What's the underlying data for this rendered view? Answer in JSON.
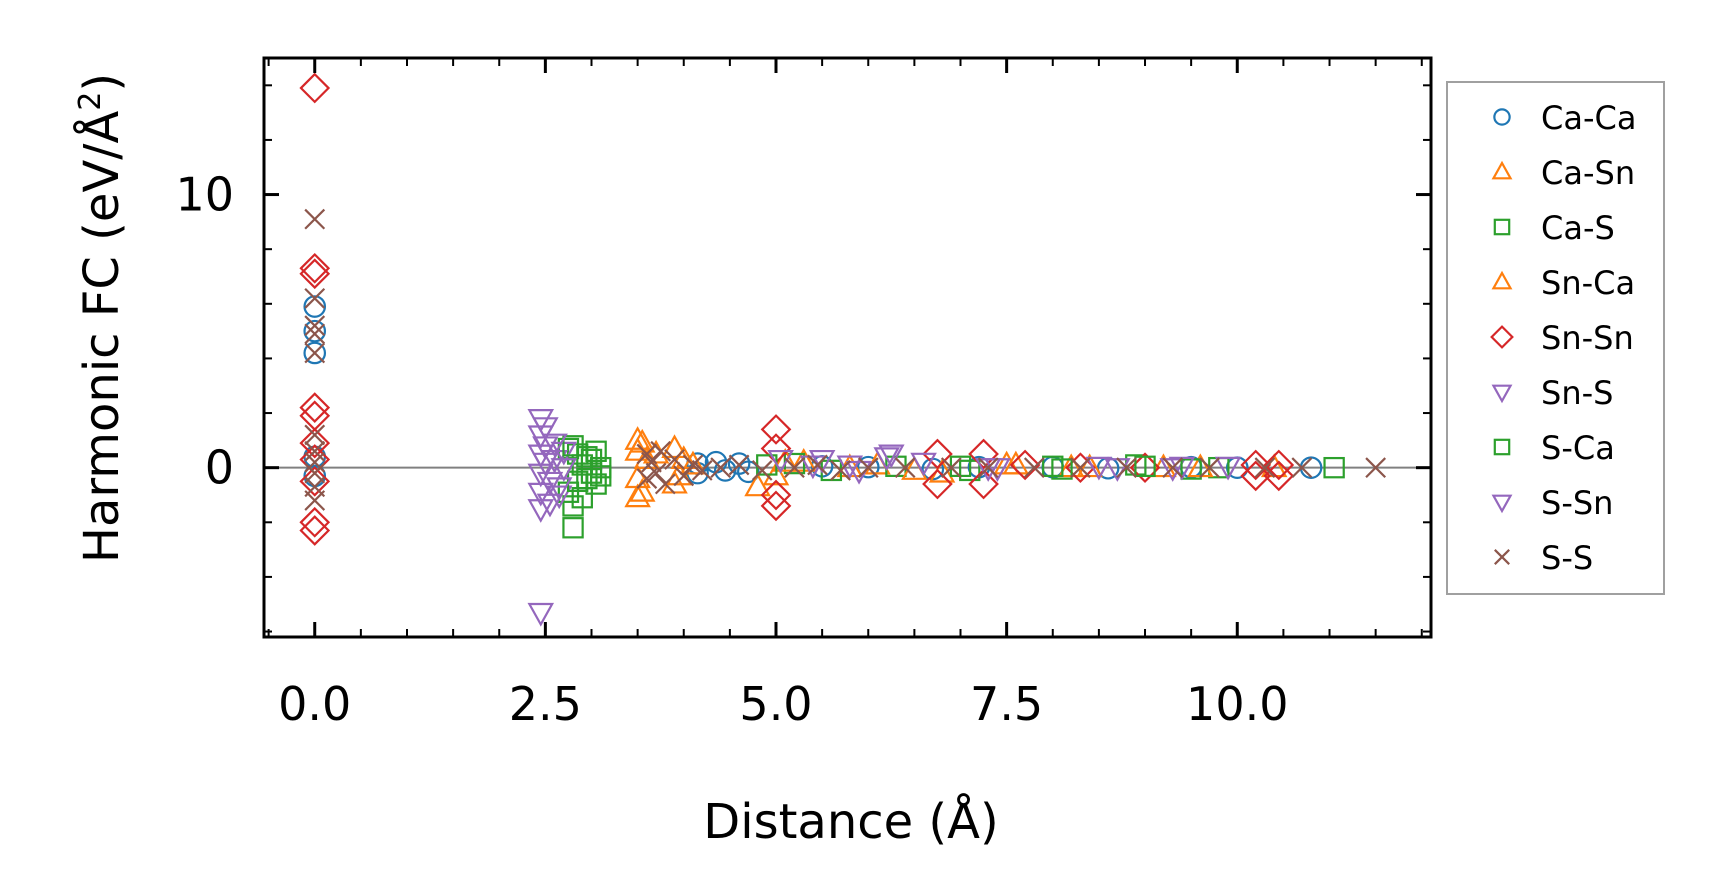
{
  "chart_data": {
    "type": "scatter",
    "title": "",
    "xlabel": "Distance (Å)",
    "ylabel_main": "Harmonic FC (eV/Å",
    "ylabel_sup": "2",
    "ylabel_close": ")",
    "xlim": [
      -0.55,
      12.1
    ],
    "ylim": [
      -6.2,
      15
    ],
    "xticks": [
      0,
      2.5,
      5,
      7.5,
      10
    ],
    "xtick_labels": [
      "0.0",
      "2.5",
      "5.0",
      "7.5",
      "10.0"
    ],
    "yticks": [
      0,
      10
    ],
    "ytick_labels": [
      "0",
      "10"
    ],
    "zero_line": true,
    "legend_position": "outside-right",
    "series": [
      {
        "name": "Ca-Ca",
        "marker": "circle",
        "color": "#1f77b4",
        "points": [
          [
            0,
            5.9
          ],
          [
            0,
            5.0
          ],
          [
            0,
            4.2
          ],
          [
            0,
            0.4
          ],
          [
            0,
            -0.3
          ],
          [
            4.15,
            0.15
          ],
          [
            4.15,
            -0.2
          ],
          [
            4.35,
            0.2
          ],
          [
            4.45,
            -0.1
          ],
          [
            4.6,
            0.15
          ],
          [
            4.7,
            -0.15
          ],
          [
            5.5,
            0.05
          ],
          [
            6.0,
            0.02
          ],
          [
            6.7,
            -0.05
          ],
          [
            7.2,
            0.02
          ],
          [
            8.0,
            0.02
          ],
          [
            8.6,
            -0.02
          ],
          [
            9.5,
            0.02
          ],
          [
            10.0,
            0.0
          ],
          [
            10.8,
            0.0
          ]
        ]
      },
      {
        "name": "Ca-Sn",
        "marker": "triangle-up",
        "color": "#ff7f0e",
        "points": [
          [
            3.5,
            1.0
          ],
          [
            3.5,
            0.6
          ],
          [
            3.5,
            -0.4
          ],
          [
            3.5,
            -1.1
          ],
          [
            3.6,
            0.3
          ],
          [
            3.9,
            0.7
          ],
          [
            3.9,
            -0.6
          ],
          [
            4.0,
            0.3
          ],
          [
            4.8,
            -0.7
          ],
          [
            5.0,
            -0.3
          ],
          [
            5.3,
            0.2
          ],
          [
            6.1,
            0.1
          ],
          [
            6.8,
            -0.2
          ],
          [
            7.6,
            0.1
          ],
          [
            8.2,
            0.0
          ],
          [
            9.2,
            0.0
          ],
          [
            10.4,
            0.0
          ]
        ]
      },
      {
        "name": "Ca-S",
        "marker": "square",
        "color": "#2ca02c",
        "points": [
          [
            2.75,
            0.7
          ],
          [
            2.75,
            -0.9
          ],
          [
            2.8,
            -1.4
          ],
          [
            2.8,
            -2.2
          ],
          [
            2.85,
            0.5
          ],
          [
            2.9,
            0.1
          ],
          [
            2.95,
            -0.4
          ],
          [
            3.0,
            0.3
          ],
          [
            3.05,
            -0.6
          ],
          [
            3.1,
            0.0
          ],
          [
            5.2,
            0.15
          ],
          [
            6.3,
            0.05
          ],
          [
            7.1,
            -0.1
          ],
          [
            8.0,
            0.05
          ],
          [
            8.9,
            0.1
          ],
          [
            9.8,
            0.0
          ],
          [
            11.05,
            0.0
          ]
        ]
      },
      {
        "name": "Sn-Ca",
        "marker": "triangle-up",
        "color": "#ff7f0e",
        "points": [
          [
            3.55,
            0.9
          ],
          [
            3.55,
            -0.9
          ],
          [
            3.7,
            0.5
          ],
          [
            3.95,
            -0.3
          ],
          [
            4.1,
            0.1
          ],
          [
            5.1,
            0.2
          ],
          [
            5.8,
            0.0
          ],
          [
            6.5,
            -0.1
          ],
          [
            7.5,
            0.1
          ],
          [
            8.4,
            0.0
          ],
          [
            9.6,
            0.0
          ]
        ]
      },
      {
        "name": "Sn-Sn",
        "marker": "diamond",
        "color": "#d62728",
        "points": [
          [
            0,
            13.9
          ],
          [
            0,
            7.3
          ],
          [
            0,
            7.1
          ],
          [
            0,
            2.2
          ],
          [
            0,
            1.9
          ],
          [
            0,
            0.9
          ],
          [
            0,
            0.3
          ],
          [
            0,
            -0.5
          ],
          [
            0,
            -2.0
          ],
          [
            0,
            -2.3
          ],
          [
            5.0,
            1.4
          ],
          [
            5.0,
            0.7
          ],
          [
            5.0,
            -1.0
          ],
          [
            5.0,
            -1.4
          ],
          [
            6.75,
            0.5
          ],
          [
            6.75,
            -0.6
          ],
          [
            7.25,
            0.5
          ],
          [
            7.25,
            -0.6
          ],
          [
            7.7,
            0.1
          ],
          [
            8.3,
            0.0
          ],
          [
            9.0,
            0.0
          ],
          [
            10.2,
            0.1
          ],
          [
            10.2,
            -0.3
          ],
          [
            10.45,
            0.1
          ],
          [
            10.45,
            -0.3
          ]
        ]
      },
      {
        "name": "Sn-S",
        "marker": "triangle-down",
        "color": "#9467bd",
        "points": [
          [
            2.45,
            1.8
          ],
          [
            2.45,
            1.2
          ],
          [
            2.45,
            0.5
          ],
          [
            2.45,
            -0.2
          ],
          [
            2.45,
            -0.9
          ],
          [
            2.45,
            -1.5
          ],
          [
            2.45,
            -5.3
          ],
          [
            2.5,
            0.8
          ],
          [
            2.55,
            -0.5
          ],
          [
            2.6,
            0.3
          ],
          [
            2.65,
            -1.0
          ],
          [
            2.7,
            0.6
          ],
          [
            5.4,
            0.1
          ],
          [
            5.9,
            -0.1
          ],
          [
            6.2,
            0.4
          ],
          [
            6.6,
            0.2
          ],
          [
            7.4,
            0.0
          ],
          [
            8.5,
            0.05
          ],
          [
            9.3,
            0.0
          ],
          [
            9.9,
            0.05
          ]
        ]
      },
      {
        "name": "S-Ca",
        "marker": "square",
        "color": "#2ca02c",
        "points": [
          [
            2.8,
            0.8
          ],
          [
            2.85,
            -0.5
          ],
          [
            2.9,
            -1.1
          ],
          [
            2.95,
            0.4
          ],
          [
            3.0,
            -0.2
          ],
          [
            3.05,
            0.6
          ],
          [
            3.1,
            -0.3
          ],
          [
            4.9,
            0.1
          ],
          [
            5.6,
            -0.1
          ],
          [
            7.0,
            0.05
          ],
          [
            8.1,
            -0.05
          ],
          [
            9.0,
            0.05
          ],
          [
            9.5,
            -0.05
          ]
        ]
      },
      {
        "name": "S-Sn",
        "marker": "triangle-down",
        "color": "#9467bd",
        "points": [
          [
            2.5,
            1.5
          ],
          [
            2.5,
            0.2
          ],
          [
            2.55,
            -1.3
          ],
          [
            2.6,
            0.9
          ],
          [
            2.65,
            -0.7
          ],
          [
            2.7,
            0.0
          ],
          [
            5.05,
            0.3
          ],
          [
            5.5,
            0.3
          ],
          [
            5.8,
            0.1
          ],
          [
            6.25,
            0.5
          ],
          [
            7.3,
            0.0
          ],
          [
            8.7,
            0.0
          ],
          [
            9.4,
            0.05
          ]
        ]
      },
      {
        "name": "S-S",
        "marker": "x",
        "color": "#8c564b",
        "points": [
          [
            0,
            9.1
          ],
          [
            0,
            6.2
          ],
          [
            0,
            5.2
          ],
          [
            0,
            4.9
          ],
          [
            0,
            4.2
          ],
          [
            0,
            1.2
          ],
          [
            0,
            0.6
          ],
          [
            0,
            0.2
          ],
          [
            0,
            -0.2
          ],
          [
            0,
            -0.7
          ],
          [
            0,
            -1.2
          ],
          [
            3.6,
            0.5
          ],
          [
            3.6,
            -0.4
          ],
          [
            3.65,
            0.2
          ],
          [
            3.7,
            -0.2
          ],
          [
            3.75,
            0.6
          ],
          [
            3.8,
            -0.6
          ],
          [
            3.9,
            0.3
          ],
          [
            4.0,
            -0.3
          ],
          [
            4.1,
            0.1
          ],
          [
            4.2,
            -0.1
          ],
          [
            4.4,
            0.0
          ],
          [
            4.6,
            0.1
          ],
          [
            4.85,
            -0.1
          ],
          [
            5.2,
            0.0
          ],
          [
            5.45,
            0.1
          ],
          [
            5.7,
            -0.1
          ],
          [
            6.0,
            0.0
          ],
          [
            6.4,
            0.0
          ],
          [
            6.9,
            0.0
          ],
          [
            7.3,
            0.0
          ],
          [
            7.8,
            0.0
          ],
          [
            8.3,
            0.0
          ],
          [
            8.8,
            0.0
          ],
          [
            9.3,
            0.0
          ],
          [
            9.7,
            0.0
          ],
          [
            10.3,
            0.0
          ],
          [
            10.7,
            0.0
          ],
          [
            11.5,
            0.0
          ]
        ]
      }
    ]
  }
}
